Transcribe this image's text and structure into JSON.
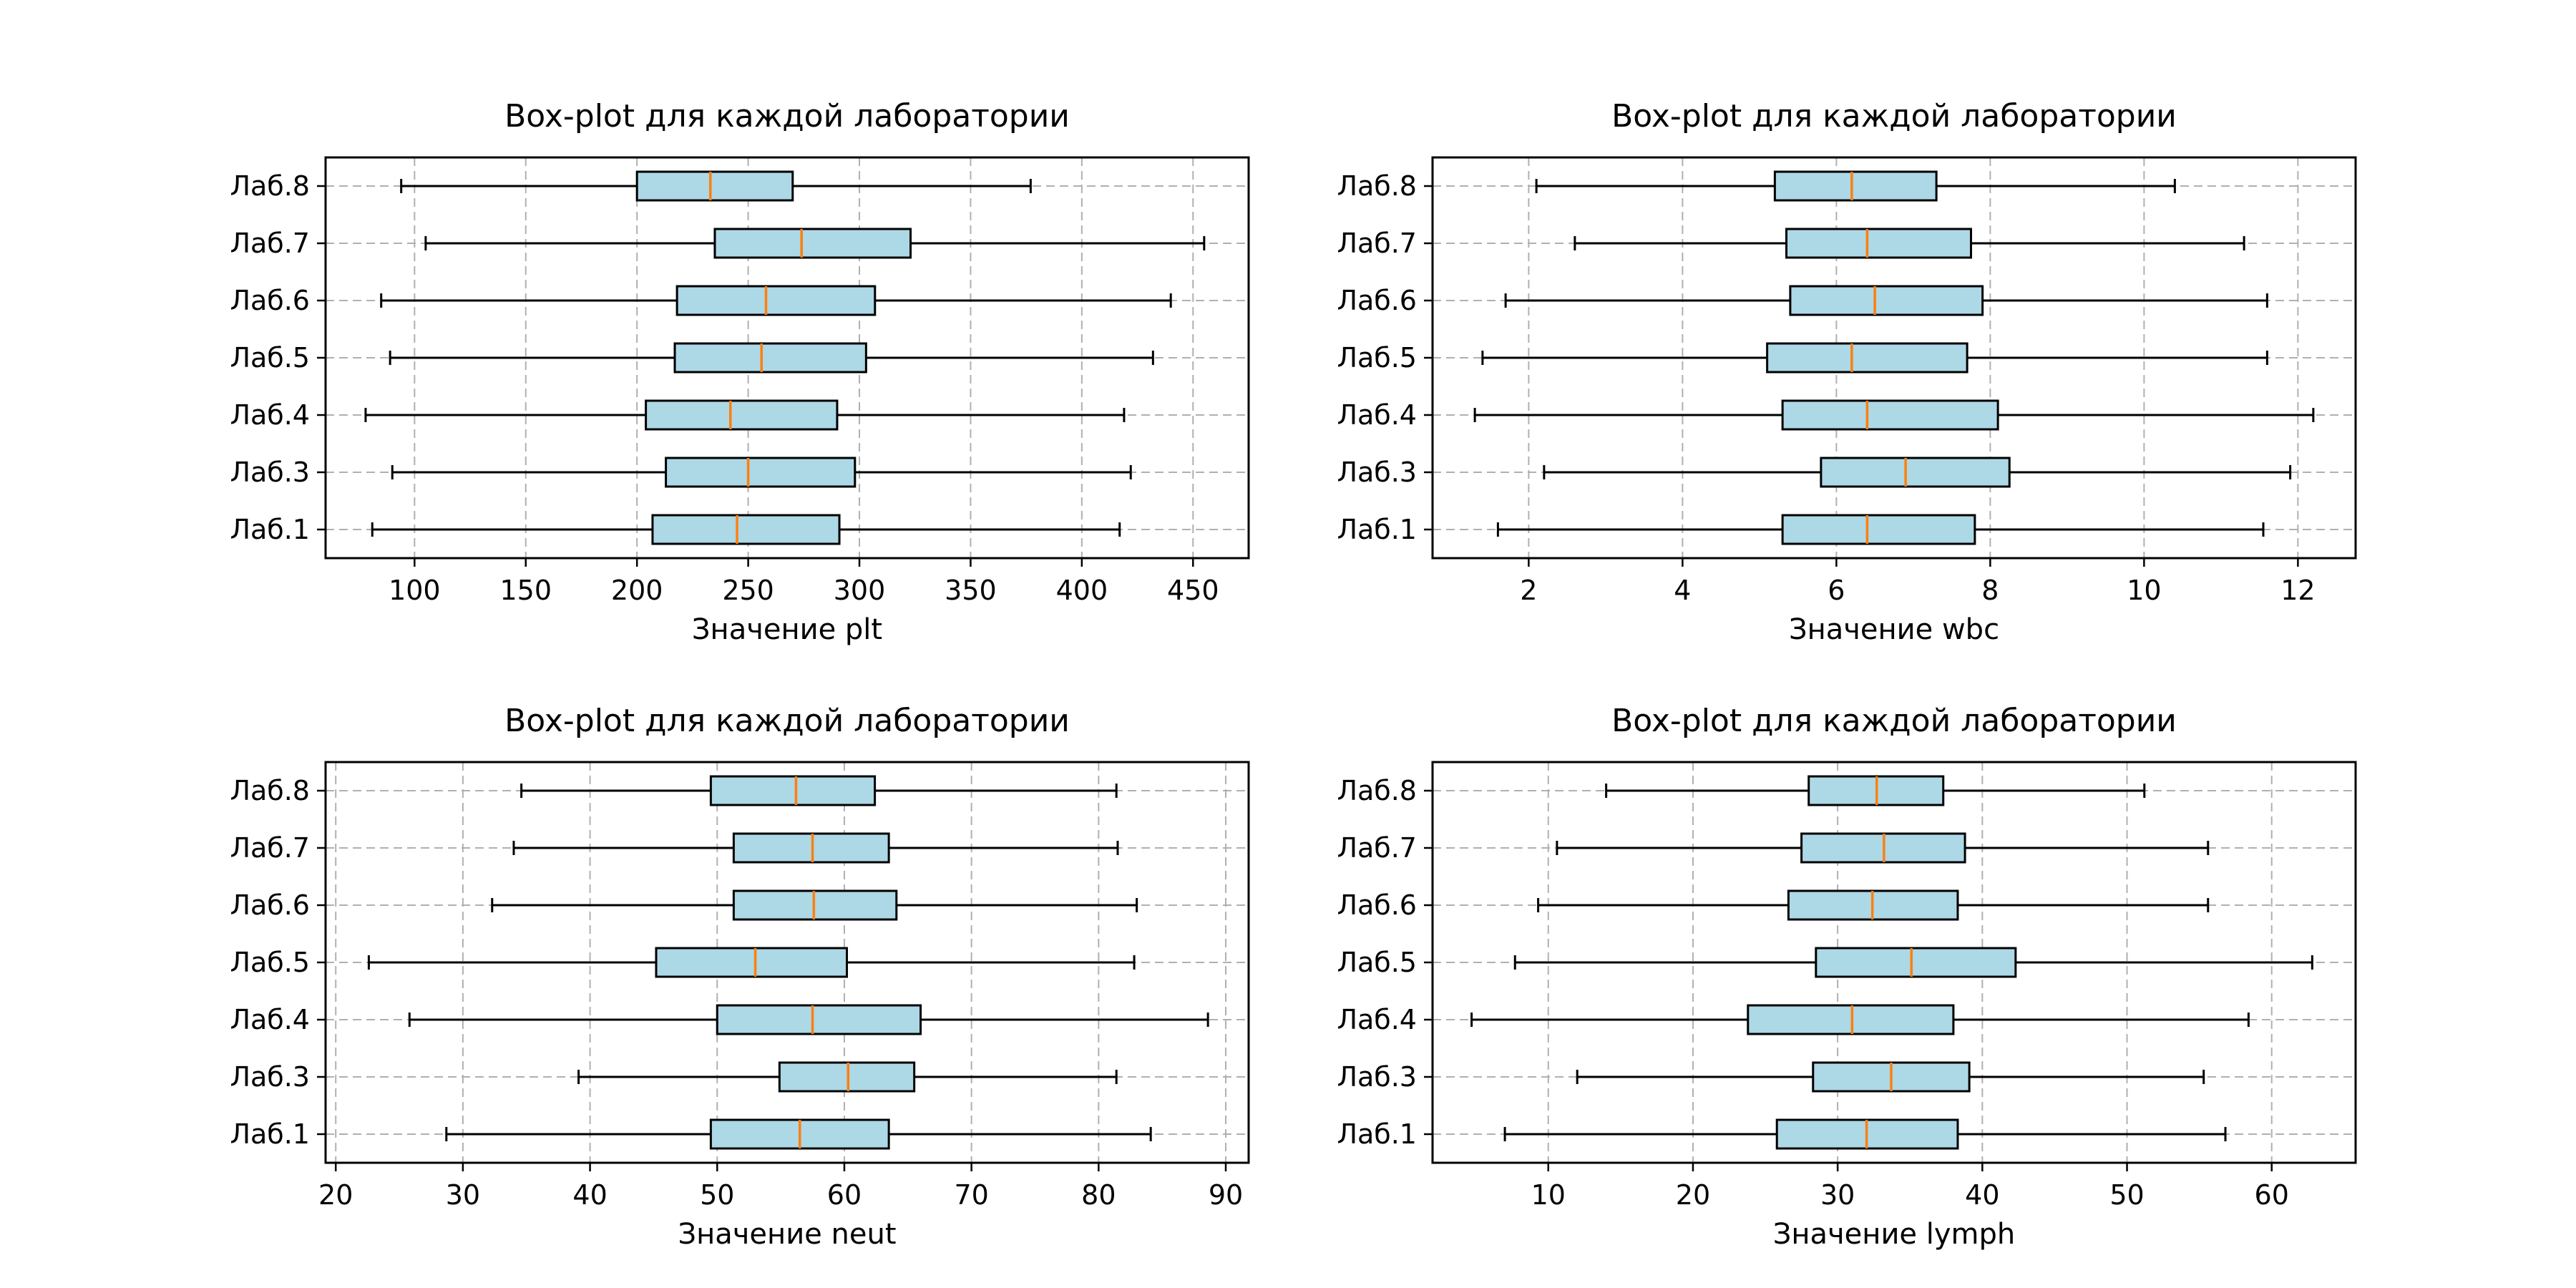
{
  "chart_data": [
    {
      "type": "boxplot",
      "orientation": "horizontal",
      "title": "Box-plot для каждой лаборатории",
      "xlabel": "Значение plt",
      "ylabel": "",
      "xlim": [
        60,
        475
      ],
      "xticks": [
        100,
        150,
        200,
        250,
        300,
        350,
        400,
        450
      ],
      "grid": true,
      "categories": [
        "Лаб.1",
        "Лаб.3",
        "Лаб.4",
        "Лаб.5",
        "Лаб.6",
        "Лаб.7",
        "Лаб.8"
      ],
      "boxes": [
        {
          "min": 81,
          "q1": 207,
          "median": 245,
          "q3": 291,
          "max": 417
        },
        {
          "min": 90,
          "q1": 213,
          "median": 250,
          "q3": 298,
          "max": 422
        },
        {
          "min": 78,
          "q1": 204,
          "median": 242,
          "q3": 290,
          "max": 419
        },
        {
          "min": 89,
          "q1": 217,
          "median": 256,
          "q3": 303,
          "max": 432
        },
        {
          "min": 85,
          "q1": 218,
          "median": 258,
          "q3": 307,
          "max": 440
        },
        {
          "min": 105,
          "q1": 235,
          "median": 274,
          "q3": 323,
          "max": 455
        },
        {
          "min": 94,
          "q1": 200,
          "median": 233,
          "q3": 270,
          "max": 377
        }
      ]
    },
    {
      "type": "boxplot",
      "orientation": "horizontal",
      "title": "Box-plot для каждой лаборатории",
      "xlabel": "Значение wbc",
      "ylabel": "",
      "xlim": [
        0.75,
        12.75
      ],
      "xticks": [
        2,
        4,
        6,
        8,
        10,
        12
      ],
      "grid": true,
      "categories": [
        "Лаб.1",
        "Лаб.3",
        "Лаб.4",
        "Лаб.5",
        "Лаб.6",
        "Лаб.7",
        "Лаб.8"
      ],
      "boxes": [
        {
          "min": 1.6,
          "q1": 5.3,
          "median": 6.4,
          "q3": 7.8,
          "max": 11.55
        },
        {
          "min": 2.2,
          "q1": 5.8,
          "median": 6.9,
          "q3": 8.25,
          "max": 11.9
        },
        {
          "min": 1.3,
          "q1": 5.3,
          "median": 6.4,
          "q3": 8.1,
          "max": 12.2
        },
        {
          "min": 1.4,
          "q1": 5.1,
          "median": 6.2,
          "q3": 7.7,
          "max": 11.6
        },
        {
          "min": 1.7,
          "q1": 5.4,
          "median": 6.5,
          "q3": 7.9,
          "max": 11.6
        },
        {
          "min": 2.6,
          "q1": 5.35,
          "median": 6.4,
          "q3": 7.75,
          "max": 11.3
        },
        {
          "min": 2.1,
          "q1": 5.2,
          "median": 6.2,
          "q3": 7.3,
          "max": 10.4
        }
      ]
    },
    {
      "type": "boxplot",
      "orientation": "horizontal",
      "title": "Box-plot для каждой лаборатории",
      "xlabel": "Значение neut",
      "ylabel": "",
      "xlim": [
        19.2,
        91.8
      ],
      "xticks": [
        20,
        30,
        40,
        50,
        60,
        70,
        80,
        90
      ],
      "grid": true,
      "categories": [
        "Лаб.1",
        "Лаб.3",
        "Лаб.4",
        "Лаб.5",
        "Лаб.6",
        "Лаб.7",
        "Лаб.8"
      ],
      "boxes": [
        {
          "min": 28.7,
          "q1": 49.5,
          "median": 56.5,
          "q3": 63.5,
          "max": 84.1
        },
        {
          "min": 39.1,
          "q1": 54.9,
          "median": 60.3,
          "q3": 65.5,
          "max": 81.4
        },
        {
          "min": 25.8,
          "q1": 50.0,
          "median": 57.5,
          "q3": 66.0,
          "max": 88.6
        },
        {
          "min": 22.6,
          "q1": 45.2,
          "median": 53.0,
          "q3": 60.2,
          "max": 82.8
        },
        {
          "min": 32.3,
          "q1": 51.3,
          "median": 57.6,
          "q3": 64.1,
          "max": 83.0
        },
        {
          "min": 34.0,
          "q1": 51.3,
          "median": 57.5,
          "q3": 63.5,
          "max": 81.5
        },
        {
          "min": 34.6,
          "q1": 49.5,
          "median": 56.2,
          "q3": 62.4,
          "max": 81.4
        }
      ]
    },
    {
      "type": "boxplot",
      "orientation": "horizontal",
      "title": "Box-plot для каждой лаборатории",
      "xlabel": "Значение lymph",
      "ylabel": "",
      "xlim": [
        2.0,
        65.8
      ],
      "xticks": [
        10,
        20,
        30,
        40,
        50,
        60
      ],
      "grid": true,
      "categories": [
        "Лаб.1",
        "Лаб.3",
        "Лаб.4",
        "Лаб.5",
        "Лаб.6",
        "Лаб.7",
        "Лаб.8"
      ],
      "boxes": [
        {
          "min": 7.0,
          "q1": 25.8,
          "median": 32.0,
          "q3": 38.3,
          "max": 56.8
        },
        {
          "min": 12.0,
          "q1": 28.3,
          "median": 33.7,
          "q3": 39.1,
          "max": 55.3
        },
        {
          "min": 4.7,
          "q1": 23.8,
          "median": 31.0,
          "q3": 38.0,
          "max": 58.4
        },
        {
          "min": 7.7,
          "q1": 28.5,
          "median": 35.1,
          "q3": 42.3,
          "max": 62.8
        },
        {
          "min": 9.3,
          "q1": 26.6,
          "median": 32.4,
          "q3": 38.3,
          "max": 55.6
        },
        {
          "min": 10.6,
          "q1": 27.5,
          "median": 33.2,
          "q3": 38.8,
          "max": 55.6
        },
        {
          "min": 14.0,
          "q1": 28.0,
          "median": 32.7,
          "q3": 37.3,
          "max": 51.2
        }
      ]
    }
  ],
  "colors": {
    "box_fill": "#add8e6",
    "median": "#ff7f0e",
    "grid": "#b0b0b0",
    "line": "#000000"
  }
}
